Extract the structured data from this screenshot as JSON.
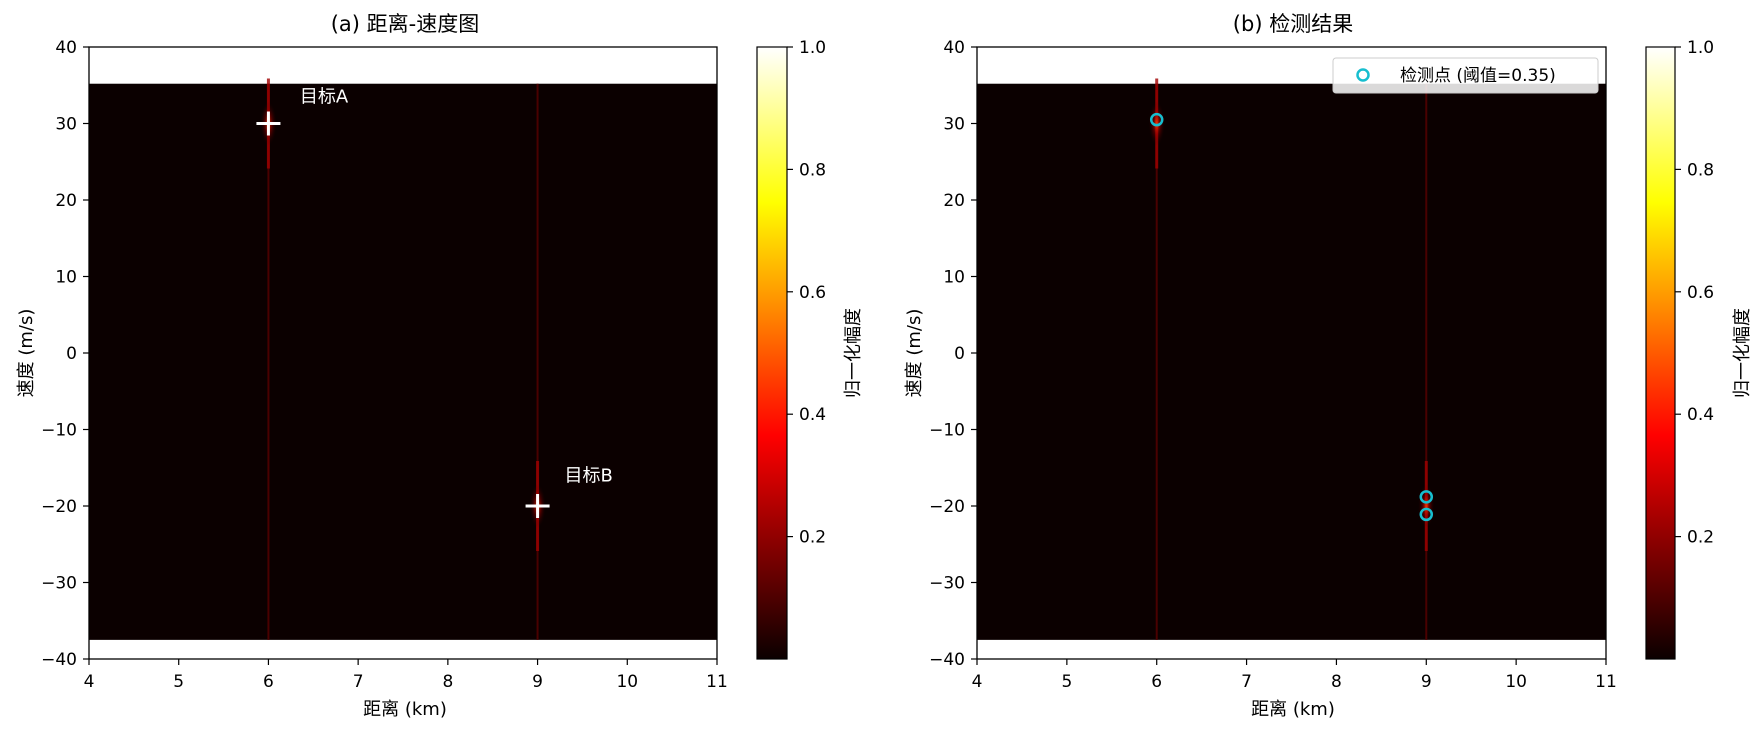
{
  "chart_data": [
    {
      "type": "heatmap",
      "title": "(a) 距离-速度图",
      "xlabel": "距离 (km)",
      "ylabel": "速度 (m/s)",
      "xlim": [
        4,
        11
      ],
      "ylim": [
        -40,
        40
      ],
      "xticks": [
        4,
        5,
        6,
        7,
        8,
        9,
        10,
        11
      ],
      "yticks": [
        40,
        30,
        20,
        10,
        0,
        -10,
        -20,
        -30,
        -40
      ],
      "data_extent": {
        "y_min": -37.5,
        "y_max": 35.2
      },
      "colormap": "hot",
      "background_value": 0.0,
      "targets": [
        {
          "name": "目标A",
          "range_km": 6,
          "velocity_mps": 30,
          "marker": "+",
          "label_offset": [
            0.35,
            3.5
          ]
        },
        {
          "name": "目标B",
          "range_km": 9,
          "velocity_mps": -20,
          "marker": "+",
          "label_offset": [
            0.3,
            4
          ]
        }
      ],
      "colorbar": {
        "label": "归一化幅度",
        "ticks": [
          "0.2",
          "0.4",
          "0.6",
          "0.8",
          "1.0"
        ],
        "tick_values": [
          0.2,
          0.4,
          0.6,
          0.8,
          1.0
        ],
        "range": [
          0.0,
          1.0
        ]
      }
    },
    {
      "type": "heatmap",
      "title": "(b) 检测结果",
      "xlabel": "距离 (km)",
      "ylabel": "速度 (m/s)",
      "xlim": [
        4,
        11
      ],
      "ylim": [
        -40,
        40
      ],
      "xticks": [
        4,
        5,
        6,
        7,
        8,
        9,
        10,
        11
      ],
      "yticks": [
        40,
        30,
        20,
        10,
        0,
        -10,
        -20,
        -30,
        -40
      ],
      "data_extent": {
        "y_min": -37.5,
        "y_max": 35.2
      },
      "colormap": "hot",
      "background_value": 0.0,
      "targets": [
        {
          "range_km": 6,
          "velocity_mps": 30
        },
        {
          "range_km": 9,
          "velocity_mps": -20
        }
      ],
      "detections": [
        {
          "range_km": 6.0,
          "velocity_mps": 30.5
        },
        {
          "range_km": 9.0,
          "velocity_mps": -18.8
        },
        {
          "range_km": 9.0,
          "velocity_mps": -21.1
        }
      ],
      "legend": {
        "label": "检测点 (阈值=0.35)",
        "marker_color": "#17becf",
        "position": "top-right"
      },
      "colorbar": {
        "label": "归一化幅度",
        "ticks": [
          "0.2",
          "0.4",
          "0.6",
          "0.8",
          "1.0"
        ],
        "tick_values": [
          0.2,
          0.4,
          0.6,
          0.8,
          1.0
        ],
        "range": [
          0.0,
          1.0
        ]
      }
    }
  ]
}
